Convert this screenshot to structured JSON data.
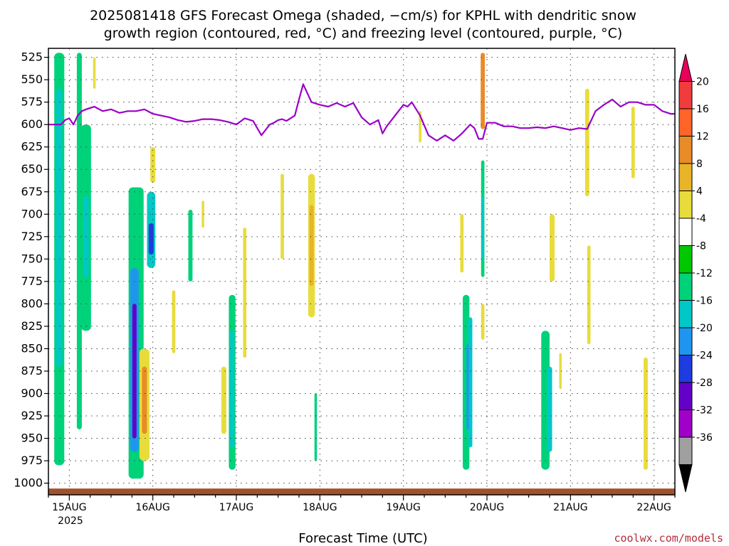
{
  "chart_data": {
    "type": "heatmap",
    "title": "2025081418 GFS Forecast Omega (shaded, −cm/s) for KPHL with dendritic snow growth region (contoured, red, °C) and freezing level (contoured, purple, °C)",
    "title_lines": [
      "2025081418 GFS Forecast Omega (shaded, −cm/s) for KPHL with dendritic snow",
      "growth region (contoured, red, °C) and freezing level (contoured, purple, °C)"
    ],
    "xlabel": "Forecast Time (UTC)",
    "ylabel": "",
    "x_ticks": [
      "15AUG",
      "16AUG",
      "17AUG",
      "18AUG",
      "19AUG",
      "20AUG",
      "21AUG",
      "22AUG"
    ],
    "x_tick_sub": "2025",
    "y_ticks": [
      525,
      550,
      575,
      600,
      625,
      650,
      675,
      700,
      725,
      750,
      775,
      800,
      825,
      850,
      875,
      900,
      925,
      950,
      975,
      1000
    ],
    "xlim_days": [
      14.75,
      22.25
    ],
    "ylim_hpa": [
      1013,
      515
    ],
    "grid": true,
    "credit": "coolwx.com/models",
    "colorbar": {
      "labels": [
        "20",
        "16",
        "12",
        "8",
        "4",
        "-4",
        "-8",
        "-12",
        "-16",
        "-20",
        "-24",
        "-28",
        "-32",
        "-36"
      ],
      "colors": [
        "#e8005a",
        "#f03c3c",
        "#ff6428",
        "#e88c28",
        "#e8b428",
        "#e8dc3c",
        "#ffffff",
        "#00c800",
        "#00d27a",
        "#00c8c8",
        "#1e96f0",
        "#1e3ce0",
        "#6400c8",
        "#a000c8",
        "#a0a0a0",
        "#000000"
      ]
    },
    "freezing_level": {
      "name": "freezing level",
      "x_days": [
        14.75,
        14.9,
        14.95,
        15.0,
        15.05,
        15.1,
        15.15,
        15.2,
        15.3,
        15.4,
        15.5,
        15.6,
        15.7,
        15.8,
        15.9,
        16.0,
        16.1,
        16.2,
        16.3,
        16.4,
        16.5,
        16.6,
        16.7,
        16.8,
        16.9,
        17.0,
        17.1,
        17.2,
        17.3,
        17.4,
        17.45,
        17.5,
        17.55,
        17.6,
        17.7,
        17.75,
        17.8,
        17.85,
        17.9,
        18.0,
        18.1,
        18.2,
        18.3,
        18.4,
        18.5,
        18.6,
        18.7,
        18.75,
        18.8,
        18.9,
        19.0,
        19.05,
        19.1,
        19.2,
        19.3,
        19.4,
        19.5,
        19.6,
        19.7,
        19.8,
        19.85,
        19.9,
        19.95,
        20.0,
        20.1,
        20.2,
        20.3,
        20.4,
        20.5,
        20.6,
        20.7,
        20.8,
        20.9,
        21.0,
        21.1,
        21.2,
        21.3,
        21.4,
        21.5,
        21.6,
        21.7,
        21.8,
        21.9,
        22.0,
        22.1,
        22.2,
        22.25
      ],
      "p_hpa": [
        600,
        600,
        595,
        593,
        600,
        590,
        585,
        583,
        580,
        585,
        583,
        587,
        585,
        585,
        583,
        588,
        590,
        592,
        595,
        597,
        596,
        594,
        594,
        595,
        597,
        600,
        593,
        596,
        612,
        600,
        598,
        595,
        594,
        596,
        590,
        572,
        555,
        565,
        575,
        578,
        580,
        576,
        580,
        576,
        592,
        600,
        595,
        610,
        602,
        590,
        578,
        580,
        575,
        590,
        612,
        618,
        612,
        618,
        610,
        600,
        604,
        616,
        616,
        598,
        598,
        602,
        602,
        604,
        604,
        603,
        604,
        602,
        604,
        606,
        604,
        605,
        585,
        578,
        572,
        580,
        575,
        575,
        578,
        578,
        585,
        588,
        588
      ]
    },
    "omega_cells": [
      {
        "d": 14.88,
        "w": 0.12,
        "p0": 520,
        "p1": 980,
        "v": -8
      },
      {
        "d": 14.88,
        "w": 0.07,
        "p0": 560,
        "p1": 870,
        "v": -12
      },
      {
        "d": 15.12,
        "w": 0.06,
        "p0": 520,
        "p1": 940,
        "v": -8
      },
      {
        "d": 15.2,
        "w": 0.12,
        "p0": 600,
        "p1": 830,
        "v": -8
      },
      {
        "d": 15.2,
        "w": 0.06,
        "p0": 680,
        "p1": 770,
        "v": -12
      },
      {
        "d": 15.3,
        "w": 0.03,
        "p0": 525,
        "p1": 560,
        "v": 6
      },
      {
        "d": 15.8,
        "w": 0.18,
        "p0": 670,
        "p1": 995,
        "v": -8
      },
      {
        "d": 15.78,
        "w": 0.1,
        "p0": 760,
        "p1": 965,
        "v": -16
      },
      {
        "d": 15.78,
        "w": 0.05,
        "p0": 800,
        "p1": 950,
        "v": -24
      },
      {
        "d": 15.98,
        "w": 0.1,
        "p0": 675,
        "p1": 760,
        "v": -12
      },
      {
        "d": 15.98,
        "w": 0.06,
        "p0": 710,
        "p1": 745,
        "v": -20
      },
      {
        "d": 15.9,
        "w": 0.12,
        "p0": 850,
        "p1": 975,
        "v": 6
      },
      {
        "d": 15.9,
        "w": 0.06,
        "p0": 870,
        "p1": 945,
        "v": 11
      },
      {
        "d": 16.0,
        "w": 0.06,
        "p0": 625,
        "p1": 665,
        "v": 6
      },
      {
        "d": 16.25,
        "w": 0.04,
        "p0": 785,
        "p1": 855,
        "v": 6
      },
      {
        "d": 16.45,
        "w": 0.05,
        "p0": 695,
        "p1": 775,
        "v": -8
      },
      {
        "d": 16.6,
        "w": 0.03,
        "p0": 685,
        "p1": 715,
        "v": 6
      },
      {
        "d": 16.85,
        "w": 0.06,
        "p0": 870,
        "p1": 945,
        "v": 6
      },
      {
        "d": 16.95,
        "w": 0.08,
        "p0": 790,
        "p1": 985,
        "v": -8
      },
      {
        "d": 16.95,
        "w": 0.05,
        "p0": 830,
        "p1": 960,
        "v": -12
      },
      {
        "d": 17.1,
        "w": 0.04,
        "p0": 715,
        "p1": 860,
        "v": 6
      },
      {
        "d": 17.55,
        "w": 0.04,
        "p0": 655,
        "p1": 750,
        "v": 6
      },
      {
        "d": 17.9,
        "w": 0.08,
        "p0": 655,
        "p1": 815,
        "v": 6
      },
      {
        "d": 17.9,
        "w": 0.05,
        "p0": 690,
        "p1": 780,
        "v": 9
      },
      {
        "d": 17.95,
        "w": 0.03,
        "p0": 900,
        "p1": 975,
        "v": -8
      },
      {
        "d": 19.2,
        "w": 0.03,
        "p0": 585,
        "p1": 620,
        "v": 6
      },
      {
        "d": 19.75,
        "w": 0.08,
        "p0": 790,
        "p1": 985,
        "v": -8
      },
      {
        "d": 19.8,
        "w": 0.05,
        "p0": 815,
        "p1": 960,
        "v": -12
      },
      {
        "d": 19.77,
        "w": 0.03,
        "p0": 845,
        "p1": 940,
        "v": -16
      },
      {
        "d": 19.7,
        "w": 0.04,
        "p0": 700,
        "p1": 765,
        "v": 6
      },
      {
        "d": 19.95,
        "w": 0.05,
        "p0": 520,
        "p1": 605,
        "v": 11
      },
      {
        "d": 19.95,
        "w": 0.04,
        "p0": 800,
        "p1": 840,
        "v": 6
      },
      {
        "d": 19.95,
        "w": 0.04,
        "p0": 640,
        "p1": 770,
        "v": -8
      },
      {
        "d": 19.95,
        "w": 0.03,
        "p0": 680,
        "p1": 750,
        "v": -12
      },
      {
        "d": 20.7,
        "w": 0.1,
        "p0": 830,
        "p1": 985,
        "v": -8
      },
      {
        "d": 20.75,
        "w": 0.06,
        "p0": 870,
        "p1": 965,
        "v": -12
      },
      {
        "d": 20.78,
        "w": 0.06,
        "p0": 700,
        "p1": 775,
        "v": 6
      },
      {
        "d": 20.88,
        "w": 0.03,
        "p0": 855,
        "p1": 895,
        "v": 6
      },
      {
        "d": 21.2,
        "w": 0.05,
        "p0": 560,
        "p1": 680,
        "v": 6
      },
      {
        "d": 21.22,
        "w": 0.04,
        "p0": 735,
        "p1": 845,
        "v": 6
      },
      {
        "d": 21.75,
        "w": 0.04,
        "p0": 580,
        "p1": 660,
        "v": 6
      },
      {
        "d": 21.9,
        "w": 0.05,
        "p0": 860,
        "p1": 985,
        "v": 6
      }
    ],
    "ground_hpa": 1006
  }
}
